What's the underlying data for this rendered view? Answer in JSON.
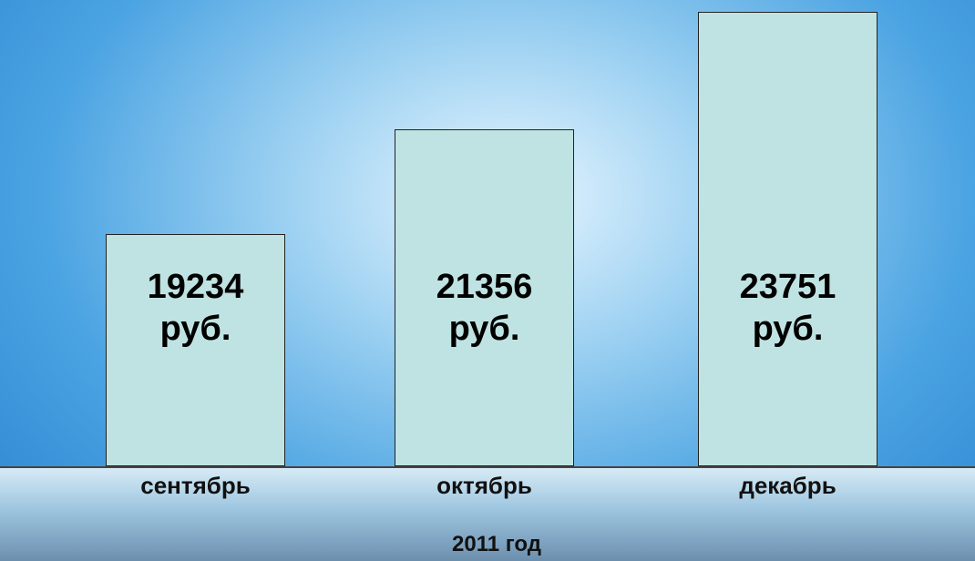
{
  "chart_data": {
    "type": "bar",
    "x_axis_label": "2011 год",
    "categories": [
      "сентябрь",
      "октябрь",
      "декабрь"
    ],
    "values": [
      19234,
      21356,
      23751
    ],
    "value_labels": [
      "19234 руб.",
      "21356 руб.",
      "23751 руб."
    ],
    "color": "#bfe3e2",
    "ylim": [
      14500,
      24000
    ]
  }
}
